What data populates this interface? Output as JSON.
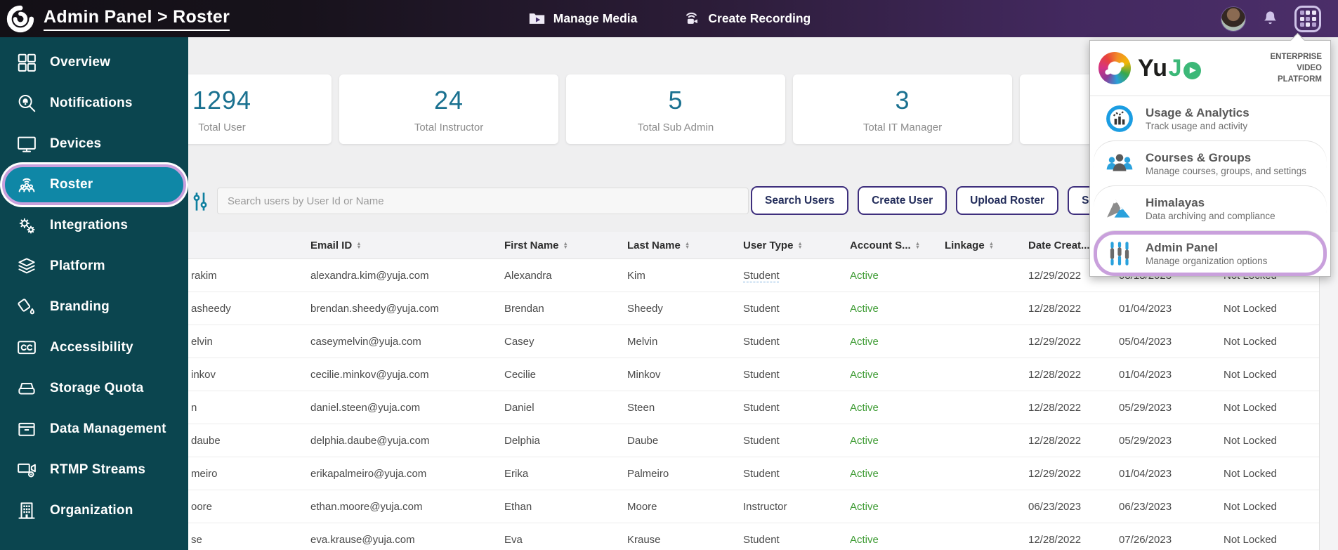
{
  "topbar": {
    "title": "Admin Panel > Roster",
    "actions": [
      {
        "label": "Manage Media",
        "icon": "manage-media-icon"
      },
      {
        "label": "Create Recording",
        "icon": "create-recording-icon"
      }
    ]
  },
  "sidebar": {
    "items": [
      {
        "label": "Overview",
        "icon": "overview-icon"
      },
      {
        "label": "Notifications",
        "icon": "notifications-icon"
      },
      {
        "label": "Devices",
        "icon": "devices-icon"
      },
      {
        "label": "Roster",
        "icon": "roster-icon",
        "active": true
      },
      {
        "label": "Integrations",
        "icon": "integrations-icon"
      },
      {
        "label": "Platform",
        "icon": "platform-icon"
      },
      {
        "label": "Branding",
        "icon": "branding-icon"
      },
      {
        "label": "Accessibility",
        "icon": "accessibility-icon"
      },
      {
        "label": "Storage Quota",
        "icon": "storage-quota-icon"
      },
      {
        "label": "Data Management",
        "icon": "data-management-icon"
      },
      {
        "label": "RTMP Streams",
        "icon": "rtmp-streams-icon"
      },
      {
        "label": "Organization",
        "icon": "organization-icon"
      }
    ]
  },
  "stats": {
    "cards": [
      {
        "value": "1294",
        "label": "Total User"
      },
      {
        "value": "24",
        "label": "Total Instructor"
      },
      {
        "value": "5",
        "label": "Total Sub Admin"
      },
      {
        "value": "3",
        "label": "Total IT Manager"
      },
      {
        "value": "",
        "label": ""
      }
    ]
  },
  "toolbar": {
    "search_placeholder": "Search users by User Id or Name",
    "buttons": [
      {
        "label": "Search Users"
      },
      {
        "label": "Create User"
      },
      {
        "label": "Upload Roster"
      },
      {
        "label": "Sus"
      }
    ]
  },
  "table": {
    "columns": [
      {
        "label": "",
        "sortable": false
      },
      {
        "label": "Email ID",
        "sortable": true
      },
      {
        "label": "First Name",
        "sortable": true
      },
      {
        "label": "Last Name",
        "sortable": true
      },
      {
        "label": "User Type",
        "sortable": true
      },
      {
        "label": "Account S...",
        "sortable": true
      },
      {
        "label": "Linkage",
        "sortable": true
      },
      {
        "label": "Date Creat...",
        "sortable": false
      },
      {
        "label": "",
        "sortable": false
      },
      {
        "label": "",
        "sortable": false
      }
    ],
    "rows": [
      {
        "user_id": "rakim",
        "email": "alexandra.kim@yuja.com",
        "first_name": "Alexandra",
        "last_name": "Kim",
        "user_type": "Student",
        "account_status": "Active",
        "linkage": "",
        "date_created": "12/29/2022",
        "date_modified": "08/18/2023",
        "locked": "Not Locked",
        "flags": [
          "ut-dashed"
        ]
      },
      {
        "user_id": "asheedy",
        "email": "brendan.sheedy@yuja.com",
        "first_name": "Brendan",
        "last_name": "Sheedy",
        "user_type": "Student",
        "account_status": "Active",
        "linkage": "",
        "date_created": "12/28/2022",
        "date_modified": "01/04/2023",
        "locked": "Not Locked"
      },
      {
        "user_id": "elvin",
        "email": "caseymelvin@yuja.com",
        "first_name": "Casey",
        "last_name": "Melvin",
        "user_type": "Student",
        "account_status": "Active",
        "linkage": "",
        "date_created": "12/29/2022",
        "date_modified": "05/04/2023",
        "locked": "Not Locked"
      },
      {
        "user_id": "inkov",
        "email": "cecilie.minkov@yuja.com",
        "first_name": "Cecilie",
        "last_name": "Minkov",
        "user_type": "Student",
        "account_status": "Active",
        "linkage": "",
        "date_created": "12/28/2022",
        "date_modified": "01/04/2023",
        "locked": "Not Locked"
      },
      {
        "user_id": "n",
        "email": "daniel.steen@yuja.com",
        "first_name": "Daniel",
        "last_name": "Steen",
        "user_type": "Student",
        "account_status": "Active",
        "linkage": "",
        "date_created": "12/28/2022",
        "date_modified": "05/29/2023",
        "locked": "Not Locked"
      },
      {
        "user_id": "daube",
        "email": "delphia.daube@yuja.com",
        "first_name": "Delphia",
        "last_name": "Daube",
        "user_type": "Student",
        "account_status": "Active",
        "linkage": "",
        "date_created": "12/28/2022",
        "date_modified": "05/29/2023",
        "locked": "Not Locked"
      },
      {
        "user_id": "meiro",
        "email": "erikapalmeiro@yuja.com",
        "first_name": "Erika",
        "last_name": "Palmeiro",
        "user_type": "Student",
        "account_status": "Active",
        "linkage": "",
        "date_created": "12/29/2022",
        "date_modified": "01/04/2023",
        "locked": "Not Locked"
      },
      {
        "user_id": "oore",
        "email": "ethan.moore@yuja.com",
        "first_name": "Ethan",
        "last_name": "Moore",
        "user_type": "Instructor",
        "account_status": "Active",
        "linkage": "",
        "date_created": "06/23/2023",
        "date_modified": "06/23/2023",
        "locked": "Not Locked"
      },
      {
        "user_id": "se",
        "email": "eva.krause@yuja.com",
        "first_name": "Eva",
        "last_name": "Krause",
        "user_type": "Student",
        "account_status": "Active",
        "linkage": "",
        "date_created": "12/28/2022",
        "date_modified": "07/26/2023",
        "locked": "Not Locked"
      }
    ]
  },
  "apps_menu": {
    "brand": {
      "wordmark_yu": "Yu",
      "wordmark_j": "J",
      "tagline_lines": [
        "ENTERPRISE",
        "VIDEO",
        "PLATFORM"
      ]
    },
    "items": [
      {
        "title": "Usage & Analytics",
        "subtitle": "Track usage and activity",
        "icon": "usage-analytics-icon"
      },
      {
        "title": "Courses & Groups",
        "subtitle": "Manage courses, groups, and settings",
        "icon": "courses-groups-icon"
      },
      {
        "title": "Himalayas",
        "subtitle": "Data archiving and compliance",
        "icon": "himalayas-icon"
      },
      {
        "title": "Admin Panel",
        "subtitle": "Manage organization options",
        "icon": "admin-panel-icon",
        "active": true
      }
    ]
  },
  "colors": {
    "sidebar_teal": "#0b454f",
    "active_item_teal": "#0f87a6",
    "highlight_lavender": "#c9a0dc",
    "stat_number_blue": "#1a7190",
    "status_active_green": "#3f9c35",
    "button_border_purple": "#3e2f7d"
  }
}
